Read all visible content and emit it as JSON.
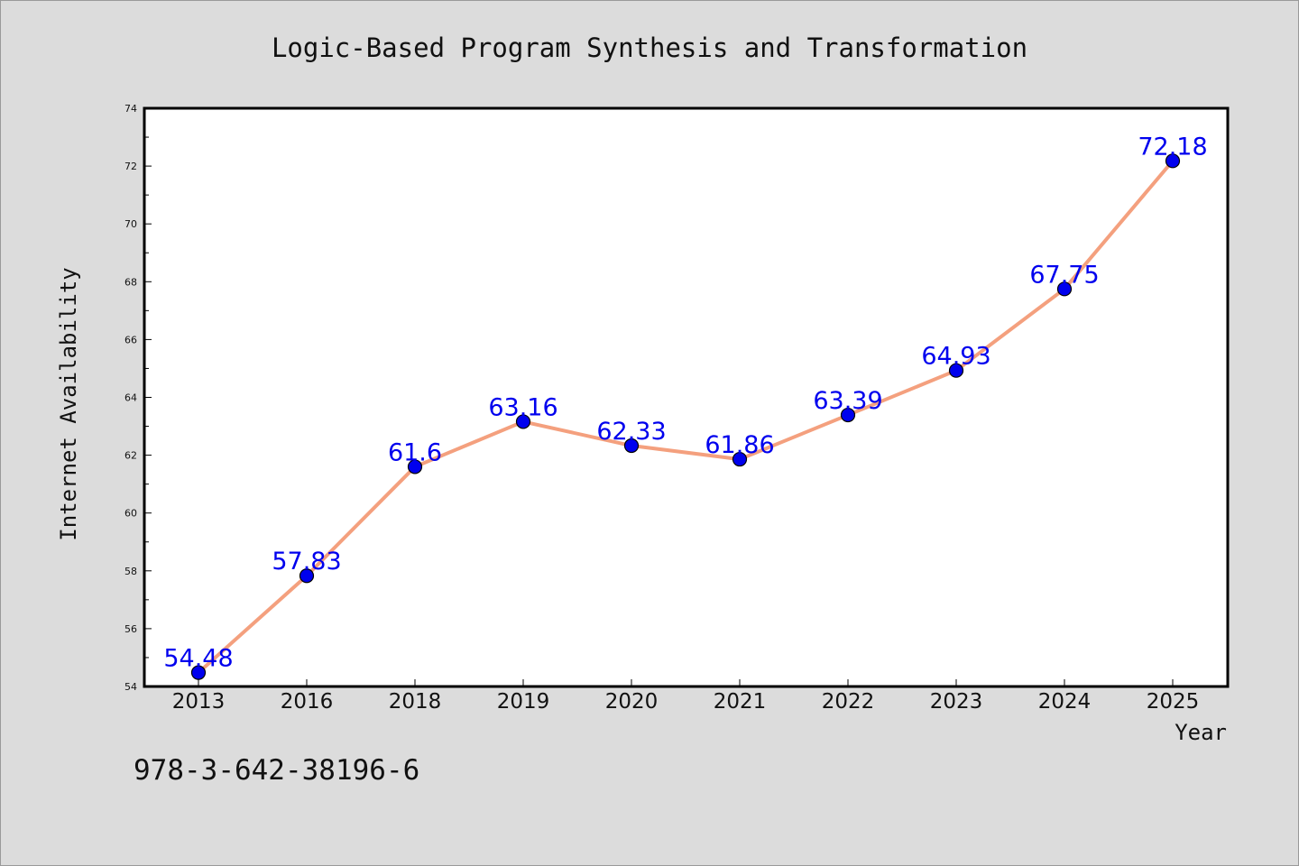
{
  "chart_data": {
    "type": "line",
    "title": "Logic-Based Program Synthesis and Transformation",
    "xlabel": "Year",
    "ylabel": "Internet Availability",
    "categories": [
      "2013",
      "2016",
      "2018",
      "2019",
      "2020",
      "2021",
      "2022",
      "2023",
      "2024",
      "2025"
    ],
    "series": [
      {
        "values": [
          54.48,
          57.83,
          61.6,
          63.16,
          62.33,
          61.86,
          63.39,
          64.93,
          67.75,
          72.18
        ],
        "labels": [
          "54.48",
          "57.83",
          "61.6",
          "63.16",
          "62.33",
          "61.86",
          "63.39",
          "64.93",
          "67.75",
          "72.18"
        ],
        "line_color": "#f4a07e",
        "marker_color": "#0000ee"
      }
    ],
    "ylim": [
      54,
      74
    ],
    "yticks": [
      54,
      56,
      58,
      60,
      62,
      64,
      66,
      68,
      70,
      72,
      74
    ],
    "grid": false,
    "legend": "none",
    "label_color": "#0000ee"
  },
  "footer": {
    "isbn": "978-3-642-38196-6"
  }
}
